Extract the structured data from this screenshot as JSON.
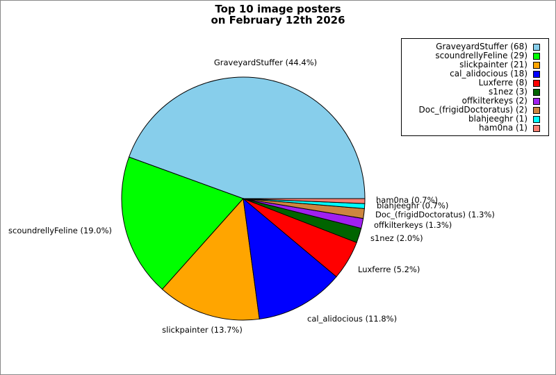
{
  "chart_data": {
    "type": "pie",
    "title_lines": [
      "Top 10 image posters",
      "on February 12th 2026"
    ],
    "slices": [
      {
        "name": "GraveyardStuffer",
        "value": 68,
        "legend": "GraveyardStuffer (68)",
        "label": "GraveyardStuffer (44.4%)",
        "color": "#87CEEB"
      },
      {
        "name": "scoundrellyFeline",
        "value": 29,
        "legend": "scoundrellyFeline (29)",
        "label": "scoundrellyFeline (19.0%)",
        "color": "#00FF00"
      },
      {
        "name": "slickpainter",
        "value": 21,
        "legend": "slickpainter (21)",
        "label": "slickpainter (13.7%)",
        "color": "#FFA500"
      },
      {
        "name": "cal_alidocious",
        "value": 18,
        "legend": "cal_alidocious (18)",
        "label": "cal_alidocious (11.8%)",
        "color": "#0000FF"
      },
      {
        "name": "Luxferre",
        "value": 8,
        "legend": "Luxferre (8)",
        "label": "Luxferre (5.2%)",
        "color": "#FF0000"
      },
      {
        "name": "s1nez",
        "value": 3,
        "legend": "s1nez (3)",
        "label": "s1nez (2.0%)",
        "color": "#006400"
      },
      {
        "name": "offkilterkeys",
        "value": 2,
        "legend": "offkilterkeys (2)",
        "label": "offkilterkeys (1.3%)",
        "color": "#A020F0"
      },
      {
        "name": "Doc_(frigidDoctoratus)",
        "value": 2,
        "legend": "Doc_(frigidDoctoratus) (2)",
        "label": "Doc_(frigidDoctoratus) (1.3%)",
        "color": "#CD853F"
      },
      {
        "name": "blahjeeghr",
        "value": 1,
        "legend": "blahjeeghr (1)",
        "label": "blahjeeghr (0.7%)",
        "color": "#00FFFF"
      },
      {
        "name": "ham0na",
        "value": 1,
        "legend": "ham0na (1)",
        "label": "ham0na (0.7%)",
        "color": "#FA8072"
      }
    ],
    "legend_position": "top-right",
    "start": "3 o'clock",
    "direction": "counterclockwise"
  }
}
